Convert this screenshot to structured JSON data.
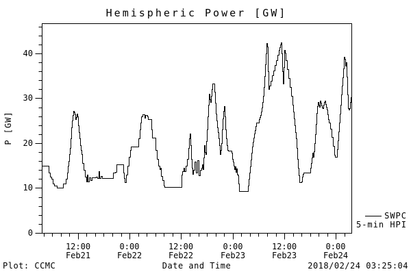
{
  "window": {
    "background": "#ffffff",
    "text_color": "#000000"
  },
  "chart_data": {
    "type": "line",
    "style": "step",
    "title": "Hemispheric Power [GW]",
    "xlabel": "Date and Time",
    "ylabel": "P [GW]",
    "grid": false,
    "line_color": "#000000",
    "xlim_hours": [
      0,
      72
    ],
    "ylim": [
      0,
      46.7
    ],
    "y_major_ticks": [
      0,
      10,
      20,
      30,
      40
    ],
    "y_minor_step": 2,
    "x_minor_start": 0.4,
    "x_minor_step": 2,
    "x_major_ticks": [
      {
        "t": 8.4,
        "time": "12:00",
        "date": "Feb21"
      },
      {
        "t": 20.4,
        "time": "0:00",
        "date": "Feb22"
      },
      {
        "t": 32.4,
        "time": "12:00",
        "date": "Feb22"
      },
      {
        "t": 44.4,
        "time": "0:00",
        "date": "Feb23"
      },
      {
        "t": 56.4,
        "time": "12:00",
        "date": "Feb23"
      },
      {
        "t": 68.4,
        "time": "0:00",
        "date": "Feb24"
      }
    ],
    "legend": {
      "position": "outside-right-bottom",
      "line1": "SWPC",
      "line2": "5-min HPI"
    },
    "series": [
      {
        "name": "SWPC 5-min HPI",
        "x_unit": "hours from plot start",
        "y_unit": "GW",
        "points": [
          [
            0,
            15
          ],
          [
            1.59,
            15
          ],
          [
            1.59,
            13.5
          ],
          [
            1.91,
            12.5
          ],
          [
            2.23,
            12
          ],
          [
            2.55,
            11
          ],
          [
            2.87,
            10.5
          ],
          [
            3.5,
            10
          ],
          [
            4.94,
            10
          ],
          [
            4.94,
            11
          ],
          [
            5.42,
            11
          ],
          [
            5.58,
            12
          ],
          [
            5.89,
            13.5
          ],
          [
            6.05,
            15
          ],
          [
            6.21,
            16
          ],
          [
            6.37,
            17.5
          ],
          [
            6.53,
            19
          ],
          [
            6.69,
            21
          ],
          [
            6.85,
            23.5
          ],
          [
            7.01,
            25
          ],
          [
            7.17,
            26.2
          ],
          [
            7.33,
            27.2
          ],
          [
            7.49,
            26.8
          ],
          [
            7.65,
            26.4
          ],
          [
            7.8,
            25.3
          ],
          [
            7.96,
            25.8
          ],
          [
            8.12,
            26.6
          ],
          [
            8.28,
            26
          ],
          [
            8.44,
            24
          ],
          [
            8.6,
            22.5
          ],
          [
            8.76,
            21
          ],
          [
            8.92,
            19.5
          ],
          [
            9.08,
            18.5
          ],
          [
            9.24,
            17.5
          ],
          [
            9.4,
            15.5
          ],
          [
            9.72,
            14
          ],
          [
            10.04,
            12.5
          ],
          [
            10.35,
            11.5
          ],
          [
            10.51,
            13
          ],
          [
            10.67,
            11.5
          ],
          [
            10.99,
            12.3
          ],
          [
            11.31,
            11.8
          ],
          [
            11.63,
            12.3
          ],
          [
            11.95,
            12.3
          ],
          [
            12.58,
            12.5
          ],
          [
            12.9,
            12.2
          ],
          [
            13.22,
            13.7
          ],
          [
            13.38,
            12.2
          ],
          [
            13.7,
            12.6
          ],
          [
            14.02,
            12.2
          ],
          [
            16.25,
            12.2
          ],
          [
            16.57,
            13.5
          ],
          [
            17.04,
            13.6
          ],
          [
            17.36,
            15.2
          ],
          [
            18.64,
            15.2
          ],
          [
            18.95,
            13.5
          ],
          [
            19.11,
            12.2
          ],
          [
            19.27,
            11.3
          ],
          [
            19.59,
            13
          ],
          [
            19.91,
            15
          ],
          [
            20.23,
            17
          ],
          [
            20.55,
            18.5
          ],
          [
            20.71,
            19.3
          ],
          [
            22.14,
            19.3
          ],
          [
            22.46,
            21
          ],
          [
            22.78,
            23
          ],
          [
            22.94,
            24.5
          ],
          [
            23.1,
            26
          ],
          [
            23.42,
            26.4
          ],
          [
            23.89,
            25.6
          ],
          [
            24.05,
            26.3
          ],
          [
            24.53,
            25.9
          ],
          [
            24.69,
            25.3
          ],
          [
            25.33,
            25.3
          ],
          [
            25.49,
            23
          ],
          [
            25.65,
            21.2
          ],
          [
            26.28,
            21.2
          ],
          [
            26.44,
            18.5
          ],
          [
            26.76,
            16.5
          ],
          [
            27.08,
            15
          ],
          [
            27.4,
            14.2
          ],
          [
            27.56,
            14.5
          ],
          [
            27.72,
            12.7
          ],
          [
            28.04,
            11.8
          ],
          [
            28.35,
            10.6
          ],
          [
            28.51,
            10.2
          ],
          [
            32.34,
            10.2
          ],
          [
            32.5,
            13
          ],
          [
            32.66,
            13.7
          ],
          [
            32.97,
            14.5
          ],
          [
            33.13,
            13.7
          ],
          [
            33.45,
            15
          ],
          [
            33.77,
            16.5
          ],
          [
            34.09,
            19
          ],
          [
            34.25,
            21
          ],
          [
            34.41,
            22.1
          ],
          [
            34.57,
            19.5
          ],
          [
            34.73,
            16.5
          ],
          [
            34.89,
            14.5
          ],
          [
            35.04,
            13.2
          ],
          [
            35.2,
            14
          ],
          [
            35.52,
            15.8
          ],
          [
            35.84,
            13.4
          ],
          [
            36.16,
            16.2
          ],
          [
            36.48,
            12.8
          ],
          [
            36.8,
            14
          ],
          [
            37.12,
            14.5
          ],
          [
            37.27,
            15.3
          ],
          [
            37.43,
            14.2
          ],
          [
            37.59,
            16.8
          ],
          [
            37.75,
            19.5
          ],
          [
            37.91,
            18
          ],
          [
            38.07,
            17.6
          ],
          [
            38.23,
            20.5
          ],
          [
            38.39,
            23
          ],
          [
            38.55,
            26
          ],
          [
            38.71,
            28.5
          ],
          [
            38.87,
            31
          ],
          [
            39.02,
            29.8
          ],
          [
            39.18,
            29.2
          ],
          [
            39.34,
            30.5
          ],
          [
            39.5,
            32
          ],
          [
            39.66,
            33.3
          ],
          [
            39.98,
            33.3
          ],
          [
            40.14,
            31.5
          ],
          [
            40.3,
            29
          ],
          [
            40.46,
            26.5
          ],
          [
            40.62,
            25
          ],
          [
            40.78,
            23.5
          ],
          [
            40.94,
            22.5
          ],
          [
            41.09,
            21
          ],
          [
            41.25,
            19.5
          ],
          [
            41.41,
            17.6
          ],
          [
            41.57,
            18.5
          ],
          [
            41.73,
            20
          ],
          [
            41.89,
            23
          ],
          [
            42.05,
            25.5
          ],
          [
            42.21,
            27.2
          ],
          [
            42.37,
            28.2
          ],
          [
            42.53,
            26
          ],
          [
            42.68,
            23
          ],
          [
            42.84,
            21
          ],
          [
            43,
            19.5
          ],
          [
            43.16,
            18.5
          ],
          [
            43.32,
            18.3
          ],
          [
            44.12,
            17.8
          ],
          [
            44.28,
            16.5
          ],
          [
            44.44,
            15.8
          ],
          [
            44.6,
            15
          ],
          [
            44.75,
            14.2
          ],
          [
            44.91,
            14.8
          ],
          [
            45.07,
            13.6
          ],
          [
            45.23,
            14.4
          ],
          [
            45.39,
            13.2
          ],
          [
            45.55,
            12.8
          ],
          [
            45.71,
            11
          ],
          [
            45.87,
            9.35
          ],
          [
            47.78,
            9.35
          ],
          [
            47.94,
            10.5
          ],
          [
            48.1,
            12
          ],
          [
            48.26,
            13.4
          ],
          [
            48.42,
            14.8
          ],
          [
            48.57,
            16.3
          ],
          [
            48.73,
            17.8
          ],
          [
            48.89,
            19.2
          ],
          [
            49.05,
            20.3
          ],
          [
            49.21,
            21.2
          ],
          [
            49.37,
            22.1
          ],
          [
            49.53,
            22.9
          ],
          [
            49.69,
            23.8
          ],
          [
            49.85,
            24.6
          ],
          [
            50.32,
            24.6
          ],
          [
            50.48,
            25.3
          ],
          [
            50.64,
            25.8
          ],
          [
            50.8,
            26.2
          ],
          [
            50.96,
            27
          ],
          [
            51.12,
            28
          ],
          [
            51.28,
            29.2
          ],
          [
            51.44,
            30.5
          ],
          [
            51.6,
            32.5
          ],
          [
            51.76,
            35
          ],
          [
            51.92,
            37.5
          ],
          [
            52.07,
            40
          ],
          [
            52.23,
            42.2
          ],
          [
            52.39,
            41.5
          ],
          [
            52.55,
            36
          ],
          [
            52.71,
            32.1
          ],
          [
            52.87,
            32.8
          ],
          [
            53.19,
            33.9
          ],
          [
            53.51,
            35.1
          ],
          [
            53.83,
            36.2
          ],
          [
            54.14,
            37.4
          ],
          [
            54.46,
            38.5
          ],
          [
            54.78,
            39.7
          ],
          [
            55.1,
            40.8
          ],
          [
            55.26,
            41.4
          ],
          [
            55.42,
            42
          ],
          [
            55.58,
            42.5
          ],
          [
            55.74,
            40
          ],
          [
            55.9,
            36
          ],
          [
            56.06,
            33.2
          ],
          [
            56.22,
            37
          ],
          [
            56.38,
            40.7
          ],
          [
            56.53,
            40.2
          ],
          [
            56.69,
            38.5
          ],
          [
            57.01,
            36.5
          ],
          [
            57.33,
            34.5
          ],
          [
            57.65,
            32.5
          ],
          [
            57.97,
            30.5
          ],
          [
            58.29,
            28.5
          ],
          [
            58.45,
            27
          ],
          [
            58.61,
            25.5
          ],
          [
            58.77,
            24
          ],
          [
            58.93,
            22.5
          ],
          [
            59.08,
            21
          ],
          [
            59.24,
            19
          ],
          [
            59.4,
            16.5
          ],
          [
            59.56,
            14.5
          ],
          [
            59.72,
            12.8
          ],
          [
            59.88,
            11.3
          ],
          [
            60.2,
            11.3
          ],
          [
            60.36,
            11.5
          ],
          [
            60.52,
            12.5
          ],
          [
            60.68,
            13.2
          ],
          [
            60.84,
            13.4
          ],
          [
            62.27,
            13.5
          ],
          [
            62.43,
            14.5
          ],
          [
            62.59,
            15.5
          ],
          [
            62.75,
            16.8
          ],
          [
            62.91,
            17.8
          ],
          [
            63.07,
            16.9
          ],
          [
            63.23,
            18.2
          ],
          [
            63.39,
            20
          ],
          [
            63.54,
            22
          ],
          [
            63.7,
            24.3
          ],
          [
            63.86,
            26.7
          ],
          [
            64.02,
            28.3
          ],
          [
            64.18,
            29.1
          ],
          [
            64.34,
            28.5
          ],
          [
            64.5,
            28.1
          ],
          [
            64.66,
            29.4
          ],
          [
            64.82,
            29
          ],
          [
            64.98,
            28.4
          ],
          [
            65.14,
            27.9
          ],
          [
            65.3,
            27.7
          ],
          [
            65.46,
            28.5
          ],
          [
            65.61,
            29.2
          ],
          [
            65.77,
            29.4
          ],
          [
            65.93,
            28.7
          ],
          [
            66.09,
            28.1
          ],
          [
            66.25,
            27.5
          ],
          [
            66.41,
            26.4
          ],
          [
            66.57,
            25.4
          ],
          [
            66.73,
            24.6
          ],
          [
            67.05,
            23.2
          ],
          [
            67.37,
            21.4
          ],
          [
            67.68,
            19.4
          ],
          [
            68,
            17.4
          ],
          [
            68.16,
            16.9
          ],
          [
            68.48,
            16.9
          ],
          [
            68.64,
            18.6
          ],
          [
            68.8,
            20.6
          ],
          [
            68.96,
            22.6
          ],
          [
            69.12,
            24.6
          ],
          [
            69.28,
            26.6
          ],
          [
            69.44,
            28.6
          ],
          [
            69.6,
            30.8
          ],
          [
            69.75,
            32.8
          ],
          [
            69.91,
            34.7
          ],
          [
            70.07,
            36.6
          ],
          [
            70.23,
            39.2
          ],
          [
            70.39,
            38.7
          ],
          [
            70.55,
            37.3
          ],
          [
            70.71,
            38
          ],
          [
            70.87,
            34.8
          ],
          [
            71.03,
            30.8
          ],
          [
            71.19,
            27.8
          ],
          [
            71.35,
            27.4
          ],
          [
            71.51,
            27.7
          ],
          [
            71.66,
            29.1
          ],
          [
            71.82,
            30.2
          ],
          [
            72,
            30.7
          ]
        ]
      }
    ]
  },
  "footer": {
    "credit": "Plot: CCMC",
    "timestamp": "2018/02/24 03:25:04"
  }
}
